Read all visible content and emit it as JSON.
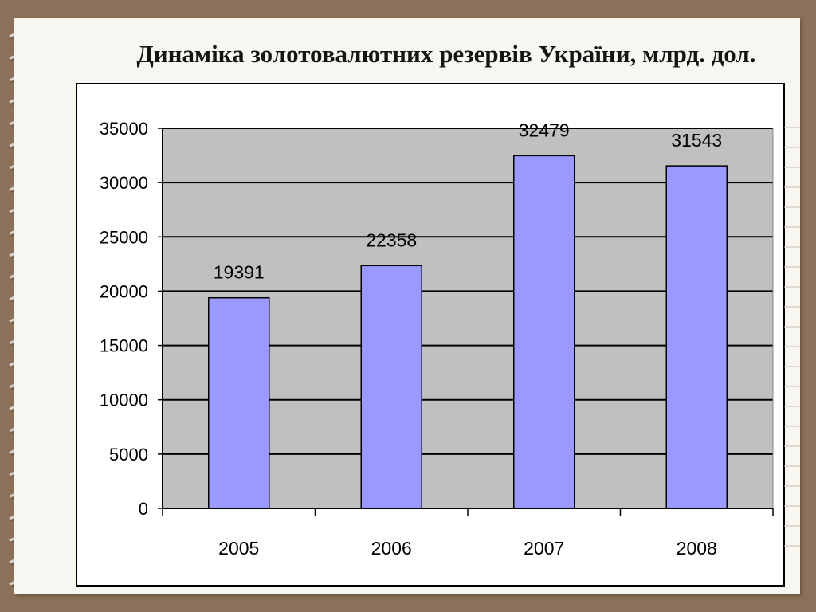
{
  "slide": {
    "title": "Динаміка золотовалютних резервів України, млрд. дол."
  },
  "colors": {
    "background": "#8b7159",
    "paper": "#f7f6f0",
    "plot_area": "#c0c0c0",
    "bar_fill": "#9999ff",
    "bar_stroke": "#000000"
  },
  "chart_data": {
    "type": "bar",
    "categories": [
      "2005",
      "2006",
      "2007",
      "2008"
    ],
    "values": [
      19391,
      22358,
      32479,
      31543
    ],
    "data_labels": [
      "19391",
      "22358",
      "32479",
      "31543"
    ],
    "title": "",
    "xlabel": "",
    "ylabel": "",
    "ylim": [
      0,
      35000
    ],
    "yticks": [
      0,
      5000,
      10000,
      15000,
      20000,
      25000,
      30000,
      35000
    ],
    "grid": true,
    "legend": "none"
  }
}
